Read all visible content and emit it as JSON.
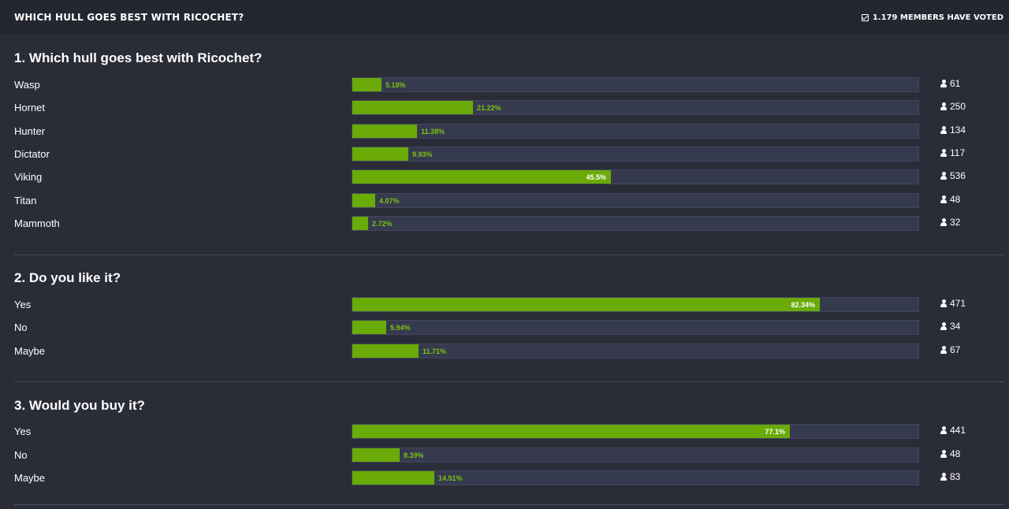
{
  "header": {
    "title": "WHICH HULL GOES BEST WITH RICOCHET?",
    "voted_text": "1.179 MEMBERS HAVE VOTED"
  },
  "questions": [
    {
      "title": "1. Which hull goes best with Ricochet?",
      "options": [
        {
          "label": "Wasp",
          "percent": 5.18,
          "percent_text": "5.18%",
          "count": "61"
        },
        {
          "label": "Hornet",
          "percent": 21.22,
          "percent_text": "21.22%",
          "count": "250"
        },
        {
          "label": "Hunter",
          "percent": 11.38,
          "percent_text": "11.38%",
          "count": "134"
        },
        {
          "label": "Dictator",
          "percent": 9.93,
          "percent_text": "9.93%",
          "count": "117"
        },
        {
          "label": "Viking",
          "percent": 45.5,
          "percent_text": "45.5%",
          "count": "536"
        },
        {
          "label": "Titan",
          "percent": 4.07,
          "percent_text": "4.07%",
          "count": "48"
        },
        {
          "label": "Mammoth",
          "percent": 2.72,
          "percent_text": "2.72%",
          "count": "32"
        }
      ]
    },
    {
      "title": "2. Do you like it?",
      "options": [
        {
          "label": "Yes",
          "percent": 82.34,
          "percent_text": "82.34%",
          "count": "471"
        },
        {
          "label": "No",
          "percent": 5.94,
          "percent_text": "5.94%",
          "count": "34"
        },
        {
          "label": "Maybe",
          "percent": 11.71,
          "percent_text": "11.71%",
          "count": "67"
        }
      ]
    },
    {
      "title": "3. Would you buy it?",
      "options": [
        {
          "label": "Yes",
          "percent": 77.1,
          "percent_text": "77.1%",
          "count": "441"
        },
        {
          "label": "No",
          "percent": 8.39,
          "percent_text": "8.39%",
          "count": "48"
        },
        {
          "label": "Maybe",
          "percent": 14.51,
          "percent_text": "14.51%",
          "count": "83"
        }
      ]
    }
  ],
  "colors": {
    "bar_fill": "#6aab07",
    "track": "#363a4e",
    "percent_outside": "#7bc215"
  },
  "icons": {
    "voted": "checkbox-check-icon",
    "count": "user-icon"
  }
}
